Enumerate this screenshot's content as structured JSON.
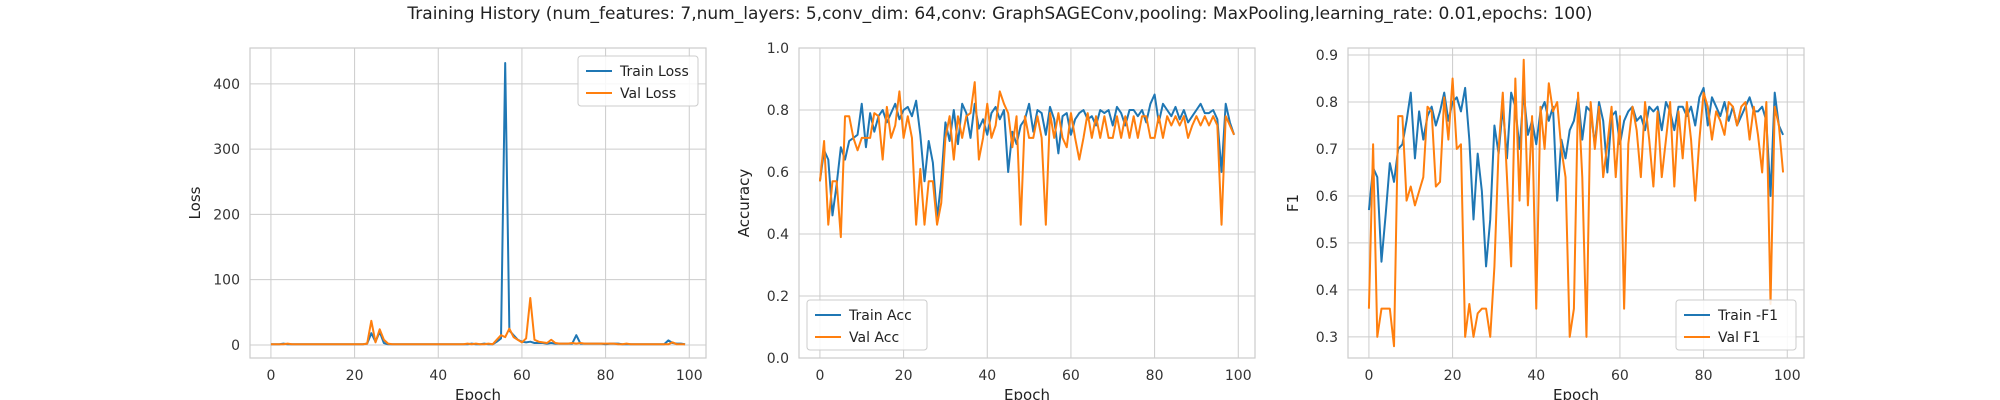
{
  "suptitle": "Training History (num_features: 7,num_layers: 5,conv_dim: 64,conv: GraphSAGEConv,pooling: MaxPooling,learning_rate: 0.01,epochs: 100)",
  "colors": {
    "series1": "#1f77b4",
    "series2": "#ff7f0e",
    "grid": "#cccccc",
    "spine": "#cccccc"
  },
  "chart_data": [
    {
      "type": "line",
      "xlabel": "Epoch",
      "ylabel": "Loss",
      "xlim": [
        -5,
        104
      ],
      "ylim": [
        -20,
        455
      ],
      "xticks": [
        0,
        20,
        40,
        60,
        80,
        100
      ],
      "yticks": [
        0,
        100,
        200,
        300,
        400
      ],
      "legend_loc": "upper-right",
      "series": [
        {
          "name": "Train Loss",
          "color": "#1f77b4",
          "values": [
            1,
            1,
            1,
            2,
            1,
            1,
            1,
            1,
            1,
            1,
            1,
            1,
            1,
            1,
            1,
            1,
            1,
            1,
            1,
            1,
            1,
            1,
            1,
            2,
            18,
            5,
            20,
            3,
            1,
            1,
            1,
            1,
            1,
            1,
            1,
            1,
            1,
            1,
            1,
            1,
            1,
            1,
            1,
            1,
            1,
            1,
            1,
            1,
            2,
            1,
            1,
            2,
            1,
            1,
            5,
            10,
            432,
            22,
            15,
            8,
            5,
            4,
            5,
            3,
            3,
            3,
            2,
            3,
            2,
            2,
            2,
            2,
            2,
            15,
            2,
            2,
            2,
            2,
            2,
            2,
            1,
            2,
            2,
            2,
            1,
            1,
            1,
            1,
            1,
            1,
            1,
            1,
            1,
            1,
            1,
            7,
            3,
            2,
            2,
            1
          ]
        },
        {
          "name": "Val Loss",
          "color": "#ff7f0e",
          "values": [
            1,
            1,
            1,
            1,
            2,
            1,
            1,
            1,
            1,
            1,
            1,
            1,
            1,
            1,
            1,
            1,
            1,
            1,
            1,
            1,
            1,
            1,
            1,
            2,
            37,
            4,
            24,
            8,
            2,
            1,
            1,
            1,
            1,
            1,
            1,
            1,
            1,
            1,
            1,
            1,
            1,
            1,
            1,
            1,
            1,
            1,
            1,
            2,
            1,
            2,
            1,
            1,
            2,
            1,
            8,
            15,
            12,
            25,
            12,
            8,
            4,
            10,
            72,
            8,
            5,
            4,
            3,
            8,
            3,
            2,
            2,
            2,
            3,
            2,
            3,
            2,
            2,
            2,
            2,
            2,
            2,
            2,
            2,
            1,
            1,
            2,
            1,
            1,
            1,
            1,
            1,
            1,
            1,
            1,
            1,
            1,
            4,
            1,
            1,
            1
          ]
        }
      ]
    },
    {
      "type": "line",
      "xlabel": "Epoch",
      "ylabel": "Accuracy",
      "xlim": [
        -5,
        104
      ],
      "ylim": [
        0,
        1
      ],
      "xticks": [
        0,
        20,
        40,
        60,
        80,
        100
      ],
      "yticks": [
        0.0,
        0.2,
        0.4,
        0.6,
        0.8,
        1.0
      ],
      "legend_loc": "lower-left",
      "series": [
        {
          "name": "Train Acc",
          "color": "#1f77b4",
          "values": [
            0.57,
            0.67,
            0.64,
            0.46,
            0.56,
            0.68,
            0.64,
            0.7,
            0.71,
            0.72,
            0.82,
            0.68,
            0.79,
            0.73,
            0.78,
            0.8,
            0.76,
            0.79,
            0.82,
            0.77,
            0.8,
            0.81,
            0.78,
            0.83,
            0.72,
            0.57,
            0.7,
            0.63,
            0.45,
            0.57,
            0.76,
            0.7,
            0.8,
            0.69,
            0.82,
            0.79,
            0.71,
            0.82,
            0.74,
            0.77,
            0.72,
            0.79,
            0.81,
            0.77,
            0.8,
            0.6,
            0.73,
            0.69,
            0.75,
            0.77,
            0.82,
            0.73,
            0.8,
            0.79,
            0.72,
            0.81,
            0.77,
            0.66,
            0.78,
            0.79,
            0.72,
            0.77,
            0.79,
            0.8,
            0.77,
            0.78,
            0.75,
            0.8,
            0.79,
            0.8,
            0.75,
            0.81,
            0.79,
            0.75,
            0.8,
            0.8,
            0.78,
            0.8,
            0.76,
            0.82,
            0.85,
            0.76,
            0.82,
            0.8,
            0.78,
            0.81,
            0.77,
            0.8,
            0.76,
            0.78,
            0.8,
            0.82,
            0.79,
            0.79,
            0.8,
            0.77,
            0.6,
            0.82,
            0.76,
            0.72
          ]
        },
        {
          "name": "Val Acc",
          "color": "#ff7f0e",
          "values": [
            0.57,
            0.7,
            0.43,
            0.57,
            0.57,
            0.39,
            0.78,
            0.78,
            0.71,
            0.67,
            0.71,
            0.71,
            0.71,
            0.79,
            0.78,
            0.64,
            0.81,
            0.71,
            0.75,
            0.86,
            0.71,
            0.78,
            0.71,
            0.43,
            0.61,
            0.43,
            0.57,
            0.57,
            0.43,
            0.5,
            0.71,
            0.78,
            0.64,
            0.78,
            0.71,
            0.78,
            0.79,
            0.89,
            0.64,
            0.71,
            0.82,
            0.71,
            0.75,
            0.86,
            0.82,
            0.79,
            0.68,
            0.78,
            0.43,
            0.78,
            0.71,
            0.71,
            0.78,
            0.71,
            0.43,
            0.79,
            0.71,
            0.79,
            0.71,
            0.68,
            0.79,
            0.71,
            0.64,
            0.71,
            0.79,
            0.71,
            0.78,
            0.71,
            0.78,
            0.71,
            0.71,
            0.78,
            0.71,
            0.78,
            0.71,
            0.78,
            0.71,
            0.78,
            0.78,
            0.71,
            0.71,
            0.78,
            0.71,
            0.78,
            0.75,
            0.78,
            0.75,
            0.78,
            0.71,
            0.75,
            0.78,
            0.75,
            0.78,
            0.75,
            0.78,
            0.75,
            0.43,
            0.78,
            0.75,
            0.72
          ]
        }
      ]
    },
    {
      "type": "line",
      "xlabel": "Epoch",
      "ylabel": "F1",
      "xlim": [
        -5,
        104
      ],
      "ylim": [
        0.255,
        0.915
      ],
      "xticks": [
        0,
        20,
        40,
        60,
        80,
        100
      ],
      "yticks": [
        0.3,
        0.4,
        0.5,
        0.6,
        0.7,
        0.8,
        0.9
      ],
      "legend_loc": "lower-right",
      "series": [
        {
          "name": "Train -F1",
          "color": "#1f77b4",
          "values": [
            0.57,
            0.66,
            0.64,
            0.46,
            0.56,
            0.67,
            0.63,
            0.7,
            0.71,
            0.76,
            0.82,
            0.68,
            0.78,
            0.72,
            0.77,
            0.79,
            0.75,
            0.78,
            0.82,
            0.76,
            0.8,
            0.81,
            0.78,
            0.83,
            0.72,
            0.55,
            0.69,
            0.61,
            0.45,
            0.55,
            0.75,
            0.69,
            0.79,
            0.68,
            0.82,
            0.79,
            0.7,
            0.82,
            0.73,
            0.76,
            0.71,
            0.78,
            0.8,
            0.76,
            0.79,
            0.59,
            0.72,
            0.68,
            0.74,
            0.76,
            0.81,
            0.72,
            0.79,
            0.78,
            0.71,
            0.8,
            0.76,
            0.65,
            0.77,
            0.78,
            0.71,
            0.76,
            0.78,
            0.79,
            0.76,
            0.77,
            0.74,
            0.79,
            0.78,
            0.79,
            0.74,
            0.8,
            0.78,
            0.74,
            0.79,
            0.79,
            0.77,
            0.79,
            0.75,
            0.81,
            0.83,
            0.75,
            0.81,
            0.79,
            0.77,
            0.8,
            0.76,
            0.79,
            0.75,
            0.77,
            0.79,
            0.81,
            0.78,
            0.78,
            0.79,
            0.76,
            0.6,
            0.82,
            0.75,
            0.73
          ]
        },
        {
          "name": "Val F1",
          "color": "#ff7f0e",
          "values": [
            0.36,
            0.71,
            0.3,
            0.36,
            0.36,
            0.36,
            0.28,
            0.77,
            0.77,
            0.59,
            0.62,
            0.58,
            0.61,
            0.64,
            0.79,
            0.78,
            0.62,
            0.63,
            0.81,
            0.72,
            0.85,
            0.7,
            0.71,
            0.3,
            0.37,
            0.3,
            0.35,
            0.36,
            0.36,
            0.3,
            0.45,
            0.7,
            0.82,
            0.64,
            0.45,
            0.85,
            0.59,
            0.89,
            0.58,
            0.77,
            0.36,
            0.79,
            0.7,
            0.84,
            0.78,
            0.8,
            0.7,
            0.64,
            0.3,
            0.36,
            0.82,
            0.64,
            0.3,
            0.8,
            0.7,
            0.79,
            0.64,
            0.71,
            0.79,
            0.64,
            0.77,
            0.36,
            0.71,
            0.79,
            0.74,
            0.64,
            0.8,
            0.72,
            0.62,
            0.78,
            0.64,
            0.72,
            0.8,
            0.62,
            0.78,
            0.68,
            0.8,
            0.72,
            0.59,
            0.72,
            0.82,
            0.79,
            0.72,
            0.78,
            0.76,
            0.73,
            0.8,
            0.79,
            0.75,
            0.79,
            0.8,
            0.72,
            0.79,
            0.73,
            0.65,
            0.8,
            0.37,
            0.79,
            0.75,
            0.65
          ]
        }
      ]
    }
  ]
}
